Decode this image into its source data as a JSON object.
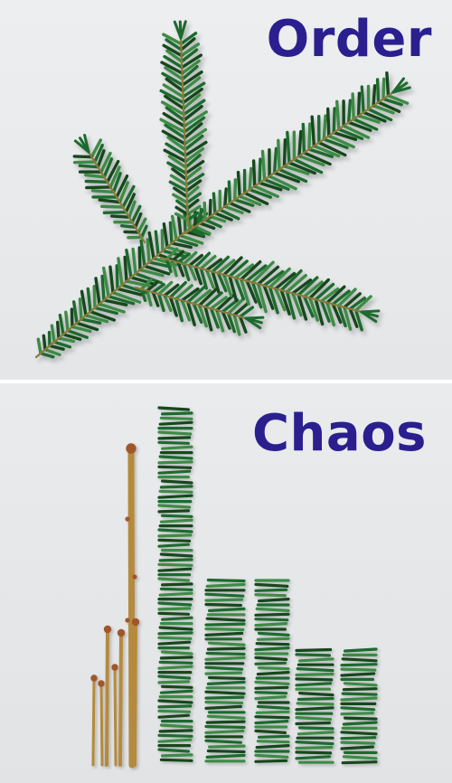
{
  "captions": {
    "top": "Order",
    "bottom": "Chaos"
  },
  "colors": {
    "caption": "#2b1f8f",
    "needle_dark": "#15461f",
    "needle_mid": "#1f6a2d",
    "needle_light": "#3d8a45",
    "twig": "#b58a3c",
    "twig_bud": "#a0562a"
  }
}
